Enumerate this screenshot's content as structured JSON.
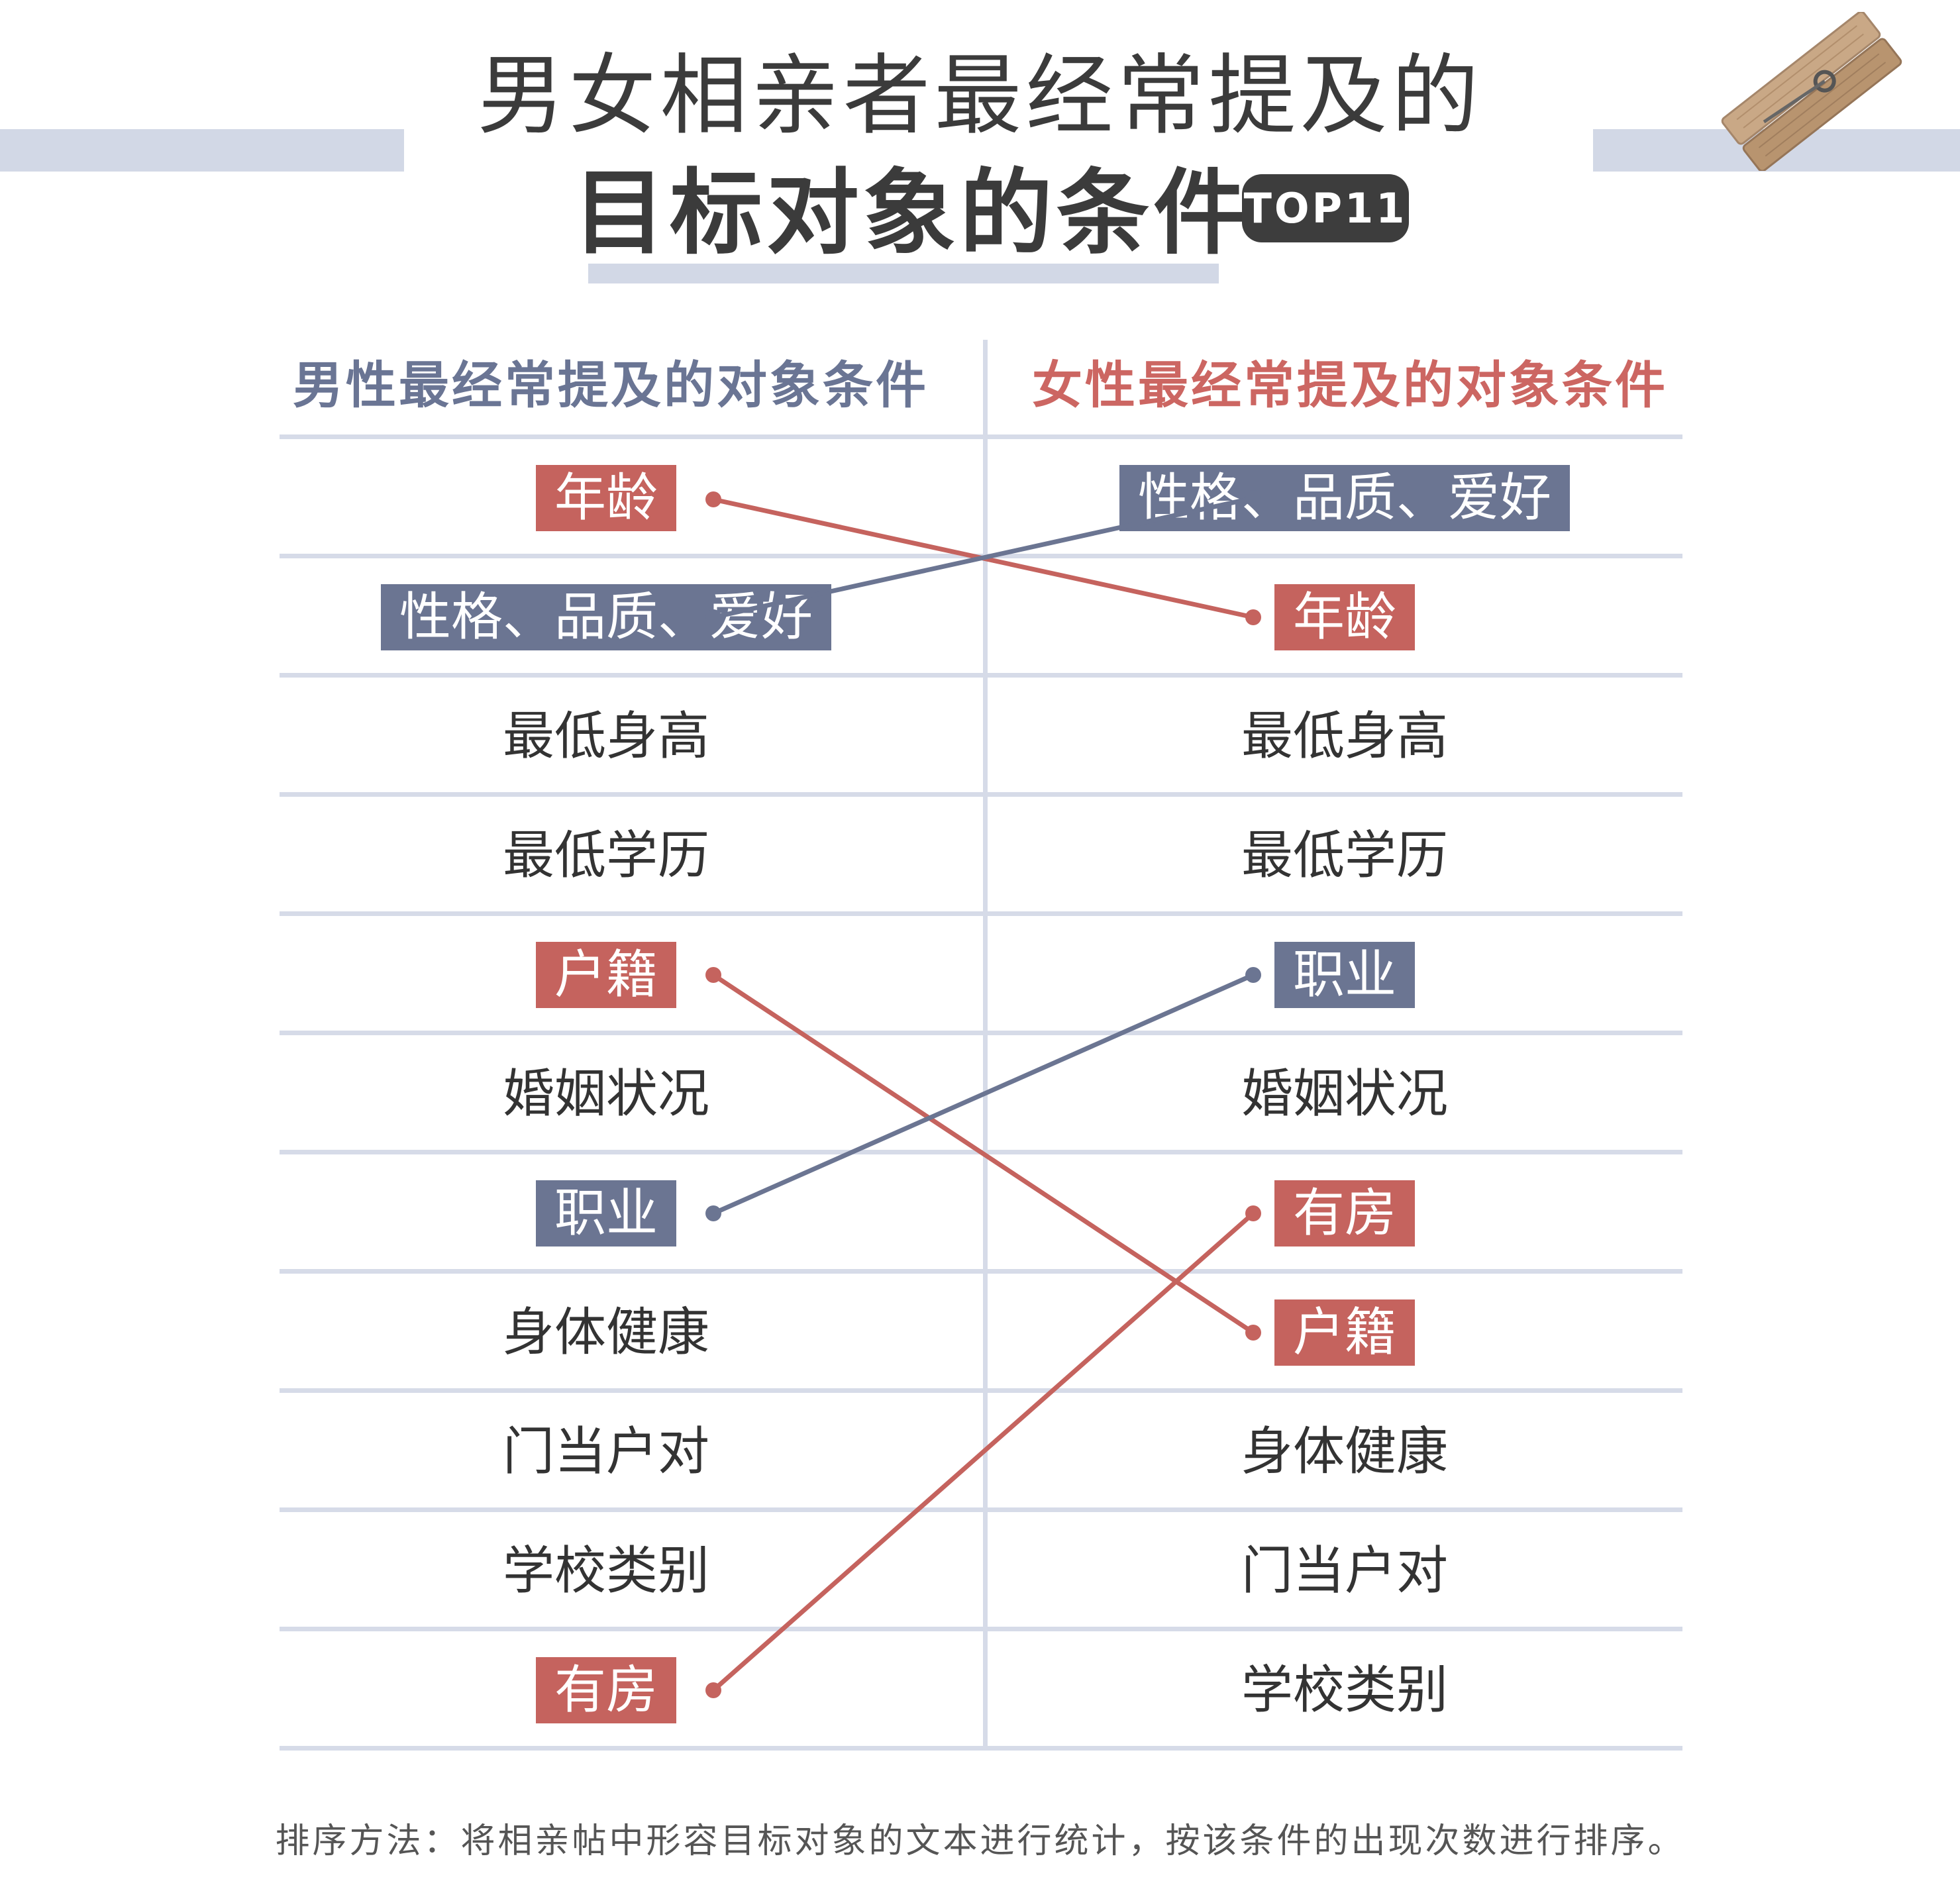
{
  "title": {
    "line1": "男女相亲者最经常提及的",
    "line2": "目标对象的条件",
    "badge": "TOP11"
  },
  "columns": {
    "left_header": "男性最经常提及的对象条件",
    "right_header": "女性最经常提及的对象条件"
  },
  "colors": {
    "red": "#c5635e",
    "blue": "#6b7592",
    "grid": "#d6dbe8"
  },
  "left_items": [
    {
      "label": "年龄",
      "style": "red"
    },
    {
      "label": "性格、品质、爱好",
      "style": "blue"
    },
    {
      "label": "最低身高",
      "style": "plain"
    },
    {
      "label": "最低学历",
      "style": "plain"
    },
    {
      "label": "户籍",
      "style": "red"
    },
    {
      "label": "婚姻状况",
      "style": "plain"
    },
    {
      "label": "职业",
      "style": "blue"
    },
    {
      "label": "身体健康",
      "style": "plain"
    },
    {
      "label": "门当户对",
      "style": "plain"
    },
    {
      "label": "学校类别",
      "style": "plain"
    },
    {
      "label": "有房",
      "style": "red"
    }
  ],
  "right_items": [
    {
      "label": "性格、品质、爱好",
      "style": "blue"
    },
    {
      "label": "年龄",
      "style": "red"
    },
    {
      "label": "最低身高",
      "style": "plain"
    },
    {
      "label": "最低学历",
      "style": "plain"
    },
    {
      "label": "职业",
      "style": "blue"
    },
    {
      "label": "婚姻状况",
      "style": "plain"
    },
    {
      "label": "有房",
      "style": "red"
    },
    {
      "label": "户籍",
      "style": "red"
    },
    {
      "label": "身体健康",
      "style": "plain"
    },
    {
      "label": "门当户对",
      "style": "plain"
    },
    {
      "label": "学校类别",
      "style": "plain"
    }
  ],
  "links": [
    {
      "from_rank": 1,
      "to_rank": 2,
      "style": "red"
    },
    {
      "from_rank": 2,
      "to_rank": 1,
      "style": "blue"
    },
    {
      "from_rank": 5,
      "to_rank": 8,
      "style": "red"
    },
    {
      "from_rank": 7,
      "to_rank": 5,
      "style": "blue"
    },
    {
      "from_rank": 11,
      "to_rank": 7,
      "style": "red"
    }
  ],
  "footer": {
    "note": "排序方法：将相亲帖中形容目标对象的文本进行统计，按该条件的出现次数进行排序。"
  },
  "icons": {
    "clip": "clothespin-icon"
  }
}
